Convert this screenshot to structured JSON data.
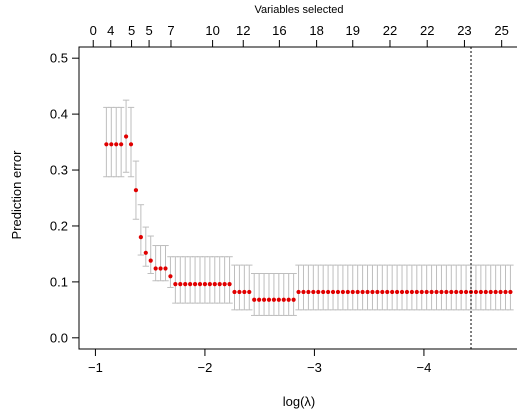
{
  "chart_data": {
    "type": "scatter",
    "title": "",
    "xlabel": "log(λ)",
    "ylabel": "Prediction error",
    "top_axis_label": "Variables selected",
    "xlim": [
      -0.85,
      -4.85
    ],
    "ylim": [
      -0.02,
      0.52
    ],
    "x_ticks": [
      -1,
      -2,
      -3,
      -4
    ],
    "x_tick_labels": [
      "−1",
      "−2",
      "−3",
      "−4"
    ],
    "y_ticks": [
      0.0,
      0.1,
      0.2,
      0.3,
      0.4,
      0.5
    ],
    "y_tick_labels": [
      "0.0",
      "0.1",
      "0.2",
      "0.3",
      "0.4",
      "0.5"
    ],
    "top_ticks": [
      -0.98,
      -1.14,
      -1.33,
      -1.49,
      -1.69,
      -2.07,
      -2.35,
      -2.68,
      -3.02,
      -3.35,
      -3.69,
      -4.03,
      -4.37,
      -4.71
    ],
    "top_tick_labels": [
      "0",
      "4",
      "5",
      "5",
      "7",
      "10",
      "12",
      "16",
      "18",
      "19",
      "22",
      "22",
      "23",
      "25"
    ],
    "vline_x": -4.43,
    "point_color": "#e00000",
    "errorbar_color": "#bebebe",
    "grid": false,
    "x": [
      -1.1,
      -1.145,
      -1.19,
      -1.235,
      -1.28,
      -1.325,
      -1.37,
      -1.415,
      -1.46,
      -1.505,
      -1.55,
      -1.595,
      -1.64,
      -1.685,
      -1.73,
      -1.775,
      -1.82,
      -1.865,
      -1.91,
      -1.955,
      -2.0,
      -2.045,
      -2.09,
      -2.135,
      -2.18,
      -2.225,
      -2.27,
      -2.315,
      -2.36,
      -2.405,
      -2.45,
      -2.495,
      -2.54,
      -2.585,
      -2.63,
      -2.675,
      -2.72,
      -2.765,
      -2.81,
      -2.855,
      -2.9,
      -2.945,
      -2.99,
      -3.035,
      -3.08,
      -3.125,
      -3.17,
      -3.215,
      -3.26,
      -3.305,
      -3.35,
      -3.395,
      -3.44,
      -3.485,
      -3.53,
      -3.575,
      -3.62,
      -3.665,
      -3.71,
      -3.755,
      -3.8,
      -3.845,
      -3.89,
      -3.935,
      -3.98,
      -4.025,
      -4.07,
      -4.115,
      -4.16,
      -4.205,
      -4.25,
      -4.295,
      -4.34,
      -4.385,
      -4.43,
      -4.475,
      -4.52,
      -4.565,
      -4.61,
      -4.655,
      -4.7,
      -4.745,
      -4.79
    ],
    "y": [
      0.346,
      0.346,
      0.346,
      0.346,
      0.36,
      0.346,
      0.264,
      0.18,
      0.152,
      0.138,
      0.124,
      0.124,
      0.124,
      0.11,
      0.096,
      0.096,
      0.096,
      0.096,
      0.096,
      0.096,
      0.096,
      0.096,
      0.096,
      0.096,
      0.096,
      0.096,
      0.082,
      0.082,
      0.082,
      0.082,
      0.068,
      0.068,
      0.068,
      0.068,
      0.068,
      0.068,
      0.068,
      0.068,
      0.068,
      0.082,
      0.082,
      0.082,
      0.082,
      0.082,
      0.082,
      0.082,
      0.082,
      0.082,
      0.082,
      0.082,
      0.082,
      0.082,
      0.082,
      0.082,
      0.082,
      0.082,
      0.082,
      0.082,
      0.082,
      0.082,
      0.082,
      0.082,
      0.082,
      0.082,
      0.082,
      0.082,
      0.082,
      0.082,
      0.082,
      0.082,
      0.082,
      0.082,
      0.082,
      0.082,
      0.082,
      0.082,
      0.082,
      0.082,
      0.082,
      0.082,
      0.082,
      0.082,
      0.082
    ],
    "y_lower": [
      0.288,
      0.288,
      0.288,
      0.288,
      0.296,
      0.288,
      0.212,
      0.148,
      0.128,
      0.115,
      0.102,
      0.102,
      0.102,
      0.09,
      0.062,
      0.062,
      0.062,
      0.062,
      0.062,
      0.062,
      0.062,
      0.062,
      0.062,
      0.062,
      0.062,
      0.062,
      0.05,
      0.05,
      0.05,
      0.05,
      0.04,
      0.04,
      0.04,
      0.04,
      0.04,
      0.04,
      0.04,
      0.04,
      0.04,
      0.05,
      0.05,
      0.05,
      0.05,
      0.05,
      0.05,
      0.05,
      0.05,
      0.05,
      0.05,
      0.05,
      0.05,
      0.05,
      0.05,
      0.05,
      0.05,
      0.05,
      0.05,
      0.05,
      0.05,
      0.05,
      0.05,
      0.05,
      0.05,
      0.05,
      0.05,
      0.05,
      0.05,
      0.05,
      0.05,
      0.05,
      0.05,
      0.05,
      0.05,
      0.05,
      0.05,
      0.05,
      0.05,
      0.05,
      0.05,
      0.05,
      0.05,
      0.05,
      0.05
    ],
    "y_upper": [
      0.412,
      0.412,
      0.412,
      0.412,
      0.425,
      0.412,
      0.316,
      0.238,
      0.198,
      0.182,
      0.165,
      0.165,
      0.165,
      0.145,
      0.145,
      0.145,
      0.145,
      0.145,
      0.145,
      0.145,
      0.145,
      0.145,
      0.145,
      0.145,
      0.145,
      0.145,
      0.13,
      0.13,
      0.13,
      0.13,
      0.115,
      0.115,
      0.115,
      0.115,
      0.115,
      0.115,
      0.115,
      0.115,
      0.115,
      0.13,
      0.13,
      0.13,
      0.13,
      0.13,
      0.13,
      0.13,
      0.13,
      0.13,
      0.13,
      0.13,
      0.13,
      0.13,
      0.13,
      0.13,
      0.13,
      0.13,
      0.13,
      0.13,
      0.13,
      0.13,
      0.13,
      0.13,
      0.13,
      0.13,
      0.13,
      0.13,
      0.13,
      0.13,
      0.13,
      0.13,
      0.13,
      0.13,
      0.13,
      0.13,
      0.13,
      0.13,
      0.13,
      0.13,
      0.13,
      0.13,
      0.13,
      0.13,
      0.13
    ]
  }
}
